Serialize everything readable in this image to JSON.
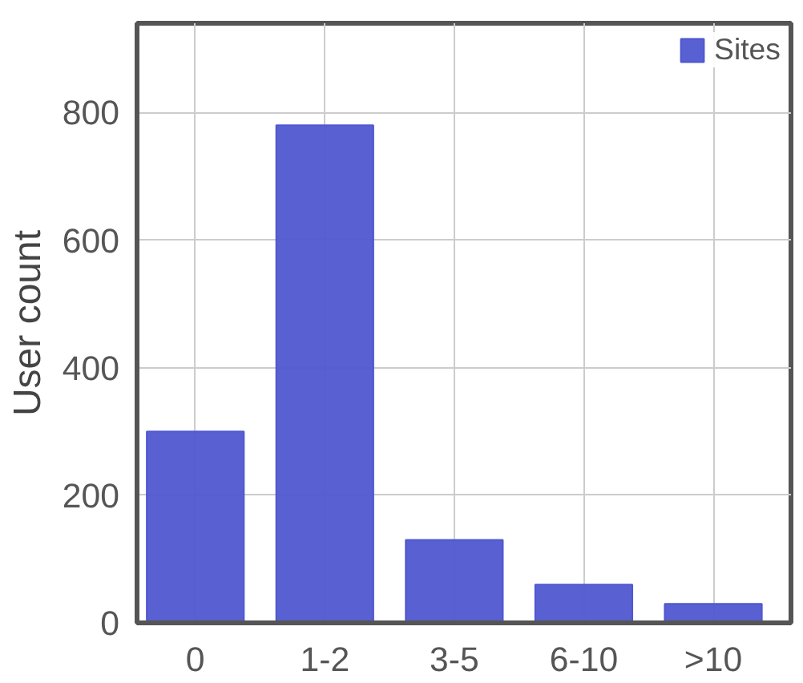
{
  "chart_data": {
    "type": "bar",
    "ylabel": "User count",
    "categories": [
      "0",
      "1-2",
      "3-5",
      "6-10",
      ">10"
    ],
    "series": [
      {
        "name": "Sites",
        "color": "#4f57d0",
        "values": [
          300,
          780,
          130,
          60,
          30
        ]
      }
    ],
    "ylim": [
      0,
      940
    ],
    "yticks": [
      0,
      200,
      400,
      600,
      800
    ],
    "grid": true,
    "legend": "top right"
  }
}
